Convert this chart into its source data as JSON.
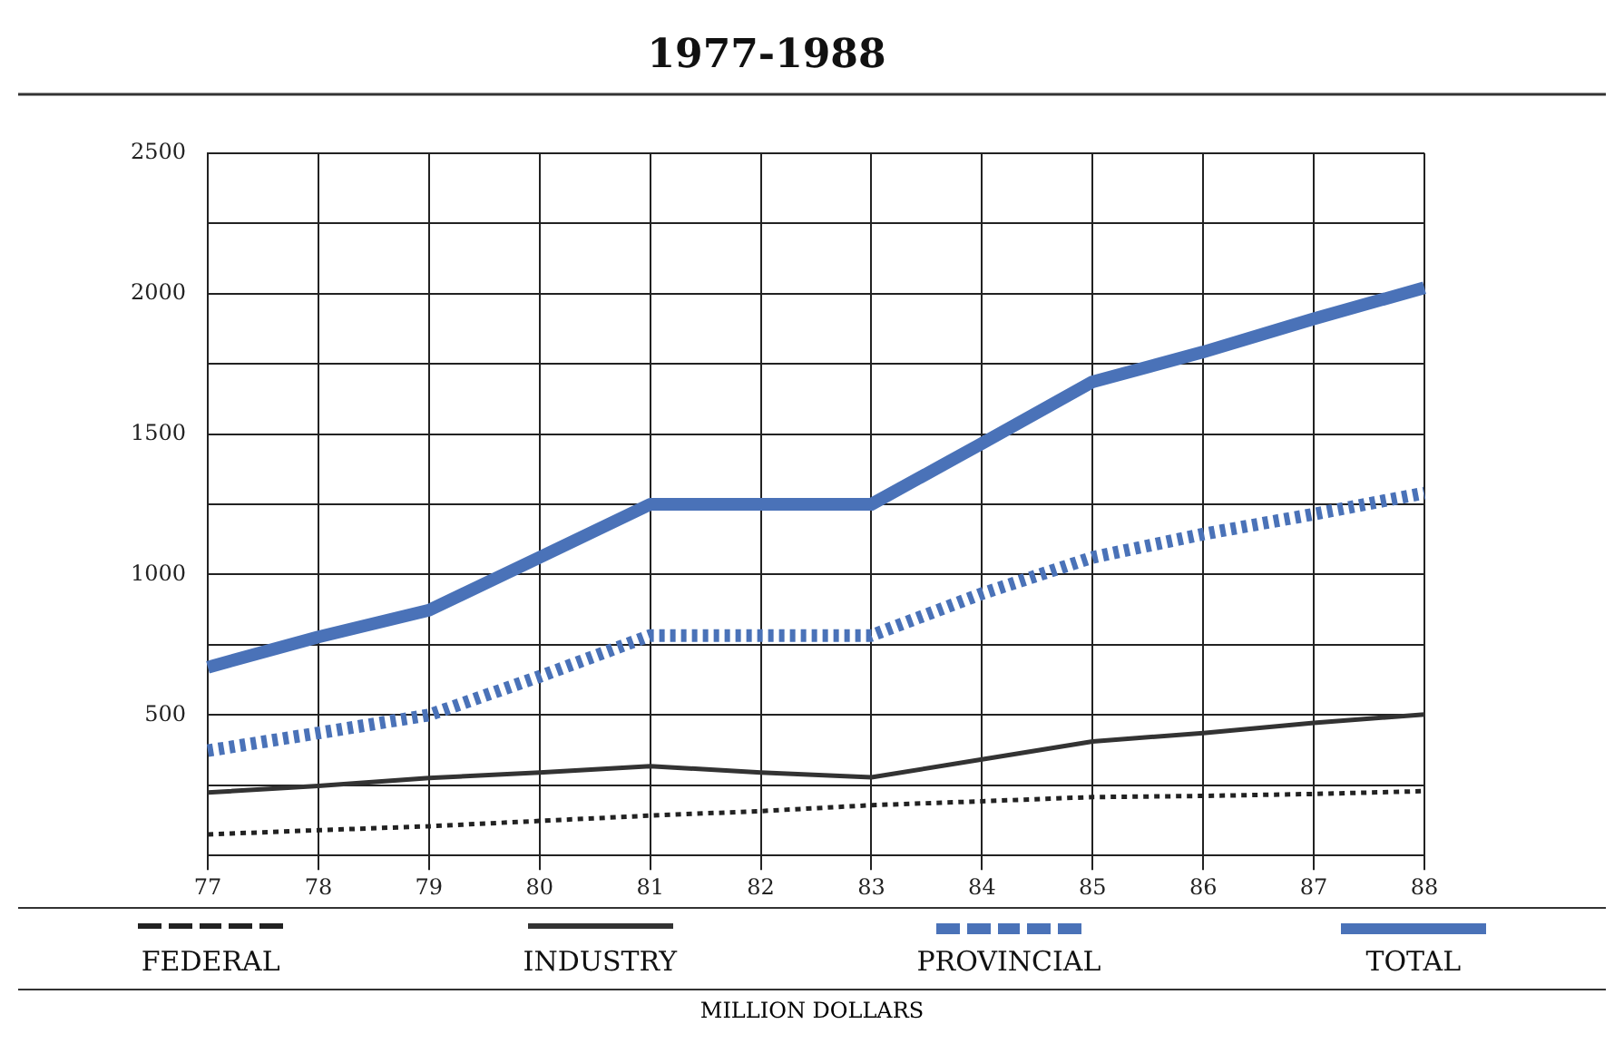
{
  "chart_data": {
    "type": "line",
    "title": "1977-1988",
    "categories": [
      "77",
      "78",
      "79",
      "80",
      "81",
      "82",
      "83",
      "84",
      "85",
      "86",
      "87",
      "88"
    ],
    "series": [
      {
        "name": "FEDERAL",
        "color": "#222222",
        "line_style": "dotted",
        "values": [
          75,
          90,
          104,
          123,
          142,
          158,
          179,
          193,
          208,
          212,
          219,
          229
        ]
      },
      {
        "name": "INDUSTRY",
        "color": "#333333",
        "line_style": "solid",
        "values": [
          224,
          248,
          276,
          295,
          318,
          295,
          278,
          342,
          406,
          436,
          472,
          502
        ]
      },
      {
        "name": "PROVINCIAL",
        "color": "#4a72b8",
        "line_style": "dotted",
        "values": [
          373,
          436,
          500,
          637,
          783,
          783,
          783,
          932,
          1061,
          1144,
          1215,
          1290
        ]
      },
      {
        "name": "TOTAL",
        "color": "#4a72b8",
        "line_style": "solid",
        "values": [
          670,
          778,
          873,
          1061,
          1250,
          1250,
          1250,
          1467,
          1686,
          1792,
          1910,
          2021
        ]
      }
    ],
    "ylim": [
      0,
      2500
    ],
    "yticks": [
      {
        "value": 0,
        "label": null
      },
      {
        "value": 250,
        "label": null
      },
      500,
      {
        "value": 750,
        "label": null
      },
      1000,
      {
        "value": 1250,
        "label": null
      },
      1500,
      {
        "value": 1750,
        "label": null
      },
      2000,
      {
        "value": 2250,
        "label": null
      },
      2500
    ],
    "grid": true,
    "legend": "bottom",
    "marker": "none",
    "annotations": [
      "MILLION DOLLARS"
    ]
  }
}
